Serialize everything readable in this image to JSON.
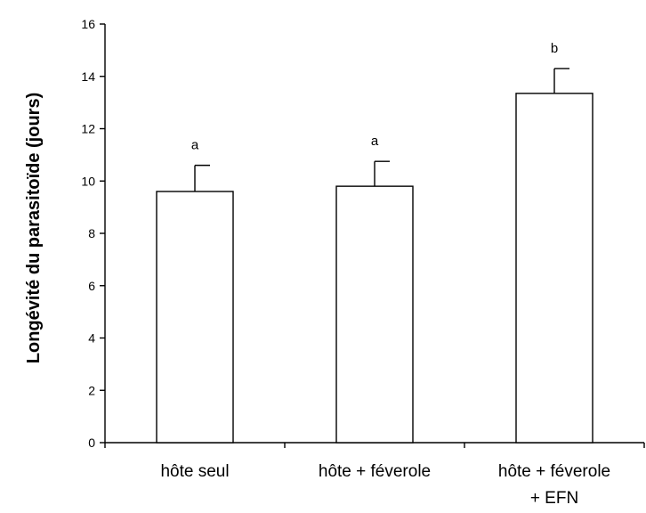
{
  "chart_data": {
    "type": "bar",
    "title": "",
    "xlabel": "",
    "ylabel": "Longévité du parasitoïde (jours)",
    "ylim": [
      0,
      16
    ],
    "yticks": [
      0,
      2,
      4,
      6,
      8,
      10,
      12,
      14,
      16
    ],
    "categories": [
      [
        "hôte seul"
      ],
      [
        "hôte + féverole"
      ],
      [
        "hôte + féverole",
        "+ EFN"
      ]
    ],
    "values": [
      9.6,
      9.8,
      13.35
    ],
    "errors": [
      1.0,
      0.95,
      0.95
    ],
    "significance": [
      "a",
      "a",
      "b"
    ],
    "bar_fill": "#ffffff",
    "bar_stroke": "#000000",
    "grid": false
  }
}
